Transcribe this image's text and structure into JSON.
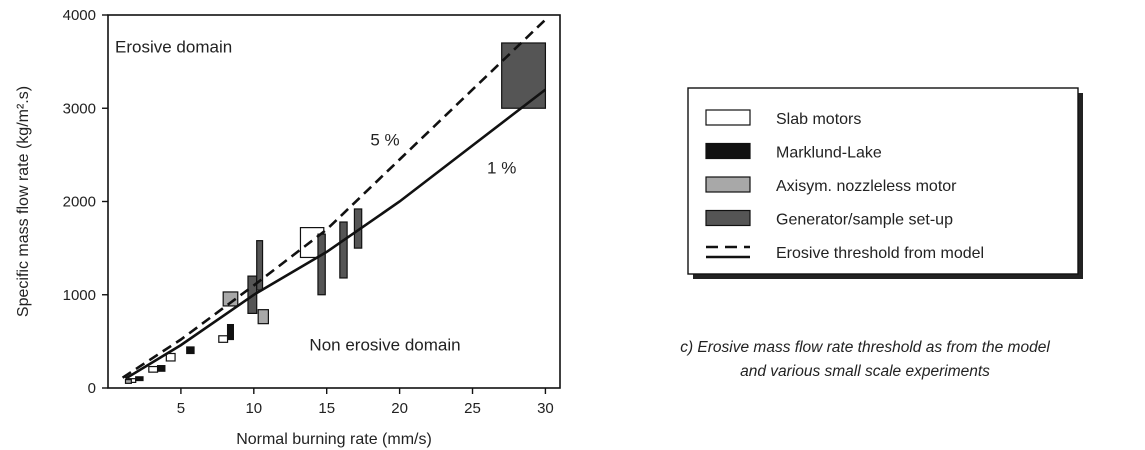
{
  "chart_data": {
    "type": "scatter",
    "xlabel": "Normal burning rate (mm/s)",
    "ylabel": "Specific mass flow rate (kg/m².s)",
    "xlim": [
      0,
      31
    ],
    "ylim": [
      0,
      4000
    ],
    "x_ticks": [
      5,
      10,
      15,
      20,
      25,
      30
    ],
    "y_ticks": [
      0,
      1000,
      2000,
      3000,
      4000
    ],
    "grid": false,
    "legend_placement": "right, outside plot",
    "annotations": [
      {
        "text": "Erosive domain",
        "x": 4.5,
        "y": 3600
      },
      {
        "text": "Non erosive domain",
        "x": 19,
        "y": 400
      },
      {
        "text": "5 %",
        "x": 19,
        "y": 2600
      },
      {
        "text": "1 %",
        "x": 27,
        "y": 2300
      }
    ],
    "series": [
      {
        "name": "Slab motors",
        "kind": "box",
        "color": "#ffffff",
        "boxes": [
          {
            "x": [
              13.2,
              14.8
            ],
            "y": [
              1400,
              1720
            ]
          },
          {
            "x": [
              2.8,
              3.4
            ],
            "y": [
              170,
              230
            ]
          },
          {
            "x": [
              4.0,
              4.6
            ],
            "y": [
              290,
              370
            ]
          },
          {
            "x": [
              7.6,
              8.2
            ],
            "y": [
              490,
              560
            ]
          },
          {
            "x": [
              1.4,
              1.9
            ],
            "y": [
              60,
              100
            ]
          }
        ]
      },
      {
        "name": "Marklund-Lake",
        "kind": "box",
        "color": "#111111",
        "boxes": [
          {
            "x": [
              1.9,
              2.4
            ],
            "y": [
              80,
              120
            ]
          },
          {
            "x": [
              3.4,
              3.9
            ],
            "y": [
              180,
              240
            ]
          },
          {
            "x": [
              5.4,
              5.9
            ],
            "y": [
              370,
              440
            ]
          },
          {
            "x": [
              8.2,
              8.6
            ],
            "y": [
              520,
              680
            ]
          }
        ]
      },
      {
        "name": "Axisym. nozzleless motor",
        "kind": "box",
        "color": "#a8a8a8",
        "boxes": [
          {
            "x": [
              7.9,
              8.9
            ],
            "y": [
              880,
              1030
            ]
          },
          {
            "x": [
              10.3,
              11.0
            ],
            "y": [
              690,
              840
            ]
          },
          {
            "x": [
              1.2,
              1.6
            ],
            "y": [
              50,
              90
            ]
          }
        ]
      },
      {
        "name": "Generator/sample  set-up",
        "kind": "box",
        "color": "#555555",
        "boxes": [
          {
            "x": [
              9.6,
              10.2
            ],
            "y": [
              800,
              1200
            ]
          },
          {
            "x": [
              10.2,
              10.6
            ],
            "y": [
              1050,
              1580
            ]
          },
          {
            "x": [
              14.4,
              14.9
            ],
            "y": [
              1000,
              1650
            ]
          },
          {
            "x": [
              15.9,
              16.4
            ],
            "y": [
              1180,
              1780
            ]
          },
          {
            "x": [
              16.9,
              17.4
            ],
            "y": [
              1500,
              1920
            ]
          },
          {
            "x": [
              27.0,
              30.0
            ],
            "y": [
              3000,
              3700
            ]
          }
        ]
      },
      {
        "name": "Erosive threshold from model",
        "kind": "line",
        "style": "dashed",
        "label": "5 %",
        "points": [
          [
            1.0,
            110
          ],
          [
            5,
            520
          ],
          [
            10,
            1100
          ],
          [
            15,
            1700
          ],
          [
            20,
            2450
          ],
          [
            25,
            3200
          ],
          [
            30,
            3950
          ]
        ]
      },
      {
        "name": "Erosive threshold from model",
        "kind": "line",
        "style": "solid",
        "label": "1 %",
        "points": [
          [
            1.2,
            100
          ],
          [
            5,
            460
          ],
          [
            10,
            1000
          ],
          [
            15,
            1460
          ],
          [
            20,
            2000
          ],
          [
            25,
            2600
          ],
          [
            30,
            3200
          ]
        ]
      }
    ]
  },
  "legend": {
    "items": [
      {
        "label": "Slab motors",
        "swatch": "box",
        "color": "#ffffff"
      },
      {
        "label": "Marklund-Lake",
        "swatch": "box",
        "color": "#111111"
      },
      {
        "label": "Axisym. nozzleless motor",
        "swatch": "box",
        "color": "#a8a8a8"
      },
      {
        "label": "Generator/sample  set-up",
        "swatch": "box",
        "color": "#555555"
      },
      {
        "label": "Erosive threshold from model",
        "swatch": "lines"
      }
    ]
  },
  "caption": {
    "line1": "c)  Erosive mass flow rate threshold as from  the model",
    "line2": "and various small scale experiments"
  }
}
